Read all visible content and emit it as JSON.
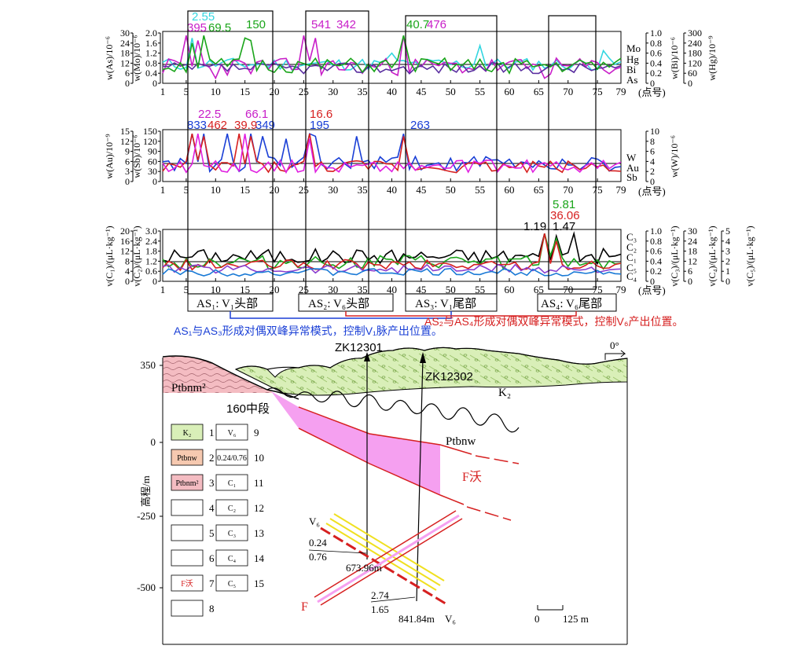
{
  "colors": {
    "as": "#1aa51a",
    "mo": "#33d6e0",
    "bi": "#5a2fa0",
    "hg": "#c81ec8",
    "au": "#d62020",
    "sb": "#1a3fd6",
    "w": "#e020e0",
    "c1": "#d62020",
    "c2": "#1aa51a",
    "c3": "#000000",
    "c4": "#8a3fd0",
    "c5": "#1a7ad6",
    "k2": "#d9efb8",
    "ptbnw": "#f6c9b0",
    "ptbnm": "#f4bcc2",
    "zone": "#f5a0f0"
  },
  "x_ticks": [
    "1",
    "5",
    "10",
    "15",
    "20",
    "25",
    "30",
    "35",
    "40",
    "45",
    "50",
    "55",
    "60",
    "65",
    "70",
    "75",
    "79"
  ],
  "x_unit": "(点号)",
  "panel1": {
    "left_axes": [
      {
        "label": "w(As)/10⁻⁶",
        "ticks": [
          "0",
          "6",
          "12",
          "18",
          "24",
          "30"
        ]
      },
      {
        "label": "w(Mo)/10⁻⁶",
        "ticks": [
          "0",
          "0.4",
          "0.8",
          "1.2",
          "1.6",
          "2.0"
        ]
      }
    ],
    "right_axes": [
      {
        "label": "w(Bi)/10⁻⁶",
        "ticks": [
          "0",
          "0.2",
          "0.4",
          "0.6",
          "0.8",
          "1.0"
        ]
      },
      {
        "label": "w(Hg)/10⁻⁹",
        "ticks": [
          "0",
          "60",
          "120",
          "180",
          "240",
          "300"
        ]
      }
    ],
    "legend": [
      "Mo",
      "Hg",
      "Bi",
      "As"
    ],
    "peaks": [
      {
        "t": "2.55",
        "c": "mo"
      },
      {
        "t": "395",
        "c": "hg"
      },
      {
        "t": "69.5",
        "c": "as"
      },
      {
        "t": "150",
        "c": "as"
      },
      {
        "t": "541",
        "c": "hg"
      },
      {
        "t": "342",
        "c": "hg"
      },
      {
        "t": "40.7",
        "c": "as"
      },
      {
        "t": "476",
        "c": "hg"
      }
    ]
  },
  "panel2": {
    "left_axes": [
      {
        "label": "w(Au)/10⁻⁹",
        "ticks": [
          "0",
          "3",
          "6",
          "9",
          "12",
          "15"
        ]
      },
      {
        "label": "w(Sb)/10⁻⁶",
        "ticks": [
          "0",
          "30",
          "60",
          "90",
          "120",
          "150"
        ]
      }
    ],
    "right_axes": [
      {
        "label": "w(W)/10⁻⁶",
        "ticks": [
          "0",
          "2",
          "4",
          "6",
          "8",
          "10"
        ]
      }
    ],
    "legend": [
      "W",
      "Au",
      "Sb"
    ],
    "peaks": [
      {
        "t": "22.5",
        "c": "w"
      },
      {
        "t": "66.1",
        "c": "w"
      },
      {
        "t": "833",
        "c": "sb"
      },
      {
        "t": "462",
        "c": "au"
      },
      {
        "t": "39.9",
        "c": "au"
      },
      {
        "t": "349",
        "c": "sb"
      },
      {
        "t": "16.6",
        "c": "au"
      },
      {
        "t": "195",
        "c": "sb"
      },
      {
        "t": "263",
        "c": "sb"
      }
    ]
  },
  "panel3": {
    "left_axes": [
      {
        "label": "v(C₁)/(μL·kg⁻¹)",
        "ticks": [
          "0",
          "4",
          "8",
          "12",
          "16",
          "20"
        ]
      },
      {
        "label": "v(C₂)/(μL·kg⁻¹)",
        "ticks": [
          "0",
          "0.6",
          "1.2",
          "1.8",
          "2.4",
          "3.0"
        ]
      }
    ],
    "right_axes": [
      {
        "label": "v(C₃)/(μL·kg⁻¹)",
        "ticks": [
          "0",
          "0.2",
          "0.4",
          "0.6",
          "0.8",
          "1.0"
        ]
      },
      {
        "label": "v(C₄)/(μL·kg⁻¹)",
        "ticks": [
          "0",
          "6",
          "12",
          "18",
          "24",
          "30"
        ]
      },
      {
        "label": "v(C₅)/(μL·kg⁻¹)",
        "ticks": [
          "0",
          "1",
          "2",
          "3",
          "4",
          "5"
        ]
      }
    ],
    "legend": [
      "C₃",
      "C₂",
      "C₁",
      "C₅",
      "C₄"
    ],
    "peaks": [
      {
        "t": "5.81",
        "c": "c2"
      },
      {
        "t": "36.06",
        "c": "c1"
      },
      {
        "t": "1.19",
        "c": "c3"
      },
      {
        "t": "1.47",
        "c": "c3"
      }
    ]
  },
  "segments": [
    {
      "label": "AS₁: V₁头部"
    },
    {
      "label": "AS₂: V₆头部"
    },
    {
      "label": "AS₃: V₁尾部"
    },
    {
      "label": "AS₄: V₆尾部"
    }
  ],
  "notes": {
    "blue": "AS₁与AS₃形成对偶双峰异常模式，控制V₁脉产出位置。",
    "red": "AS₂与AS₄形成对偶双峰异常模式，控制V₆产出位置。"
  },
  "section": {
    "y_label": "高程/m",
    "y_ticks": [
      "350",
      "0",
      "-250",
      "-500"
    ],
    "angle": "0°",
    "drill1": "ZK12301",
    "drill2": "ZK12302",
    "unit_k2": "K₂",
    "unit_ptbnm": "Ptbnm²",
    "unit_ptbnw": "Ptbnw",
    "level": "160中段",
    "fault": "F沃",
    "fault2": "F",
    "v6a": "V₆",
    "v6b": "V₆",
    "val1a": "0.24",
    "val1b": "0.76",
    "depth1": "673.96m",
    "val2a": "2.74",
    "val2b": "1.65",
    "depth2": "841.84m",
    "scale": [
      "0",
      "125 m"
    ],
    "legend": [
      {
        "n": "1",
        "t": "K₂"
      },
      {
        "n": "2",
        "t": "Ptbnw"
      },
      {
        "n": "3",
        "t": "Ptbnm²"
      },
      {
        "n": "4",
        "t": ""
      },
      {
        "n": "5",
        "t": ""
      },
      {
        "n": "6",
        "t": ""
      },
      {
        "n": "7",
        "t": "F沃"
      },
      {
        "n": "8",
        "t": ""
      },
      {
        "n": "9",
        "t": "V₆"
      },
      {
        "n": "10",
        "t": "0.24/0.76"
      },
      {
        "n": "11",
        "t": "C₁"
      },
      {
        "n": "12",
        "t": "C₂"
      },
      {
        "n": "13",
        "t": "C₃"
      },
      {
        "n": "14",
        "t": "C₄"
      },
      {
        "n": "15",
        "t": "C₅"
      }
    ]
  }
}
